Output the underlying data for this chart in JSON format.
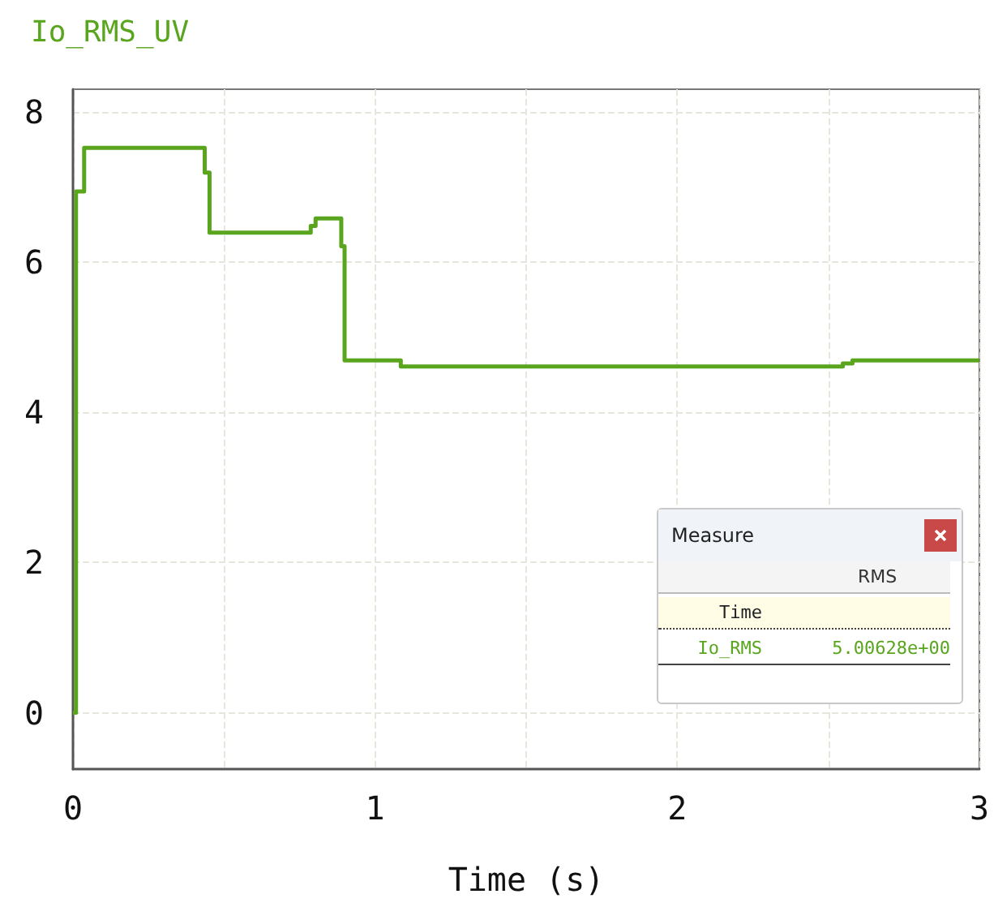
{
  "chart_data": {
    "type": "step",
    "title": "Io_RMS_UV",
    "xlabel": "Time (s)",
    "annotations": [
      "Measure",
      "RMS",
      "Time",
      "Io_RMS",
      "5.00628e+00"
    ],
    "x": [
      0,
      0.01,
      0.037,
      0.436,
      0.452,
      0.787,
      0.803,
      0.888,
      0.899,
      1.085,
      2.548,
      2.58,
      3
    ],
    "series": [
      {
        "color": "#5aa51e",
        "values": [
          0,
          6.94,
          7.52,
          7.19,
          6.39,
          6.48,
          6.58,
          6.21,
          4.69,
          4.61,
          4.65,
          4.69,
          4.69
        ]
      }
    ],
    "xlim": [
      0,
      3
    ],
    "xticks": [
      0,
      {
        "value": 0.5,
        "label": null
      },
      1,
      {
        "value": 1.5,
        "label": null
      },
      2,
      {
        "value": 2.5,
        "label": null
      },
      3
    ],
    "ylim": [
      -0.75,
      8.3
    ],
    "yticks": [
      0,
      2,
      4,
      6,
      8
    ],
    "grid": true,
    "line_style": "solid",
    "marker": "none"
  }
}
